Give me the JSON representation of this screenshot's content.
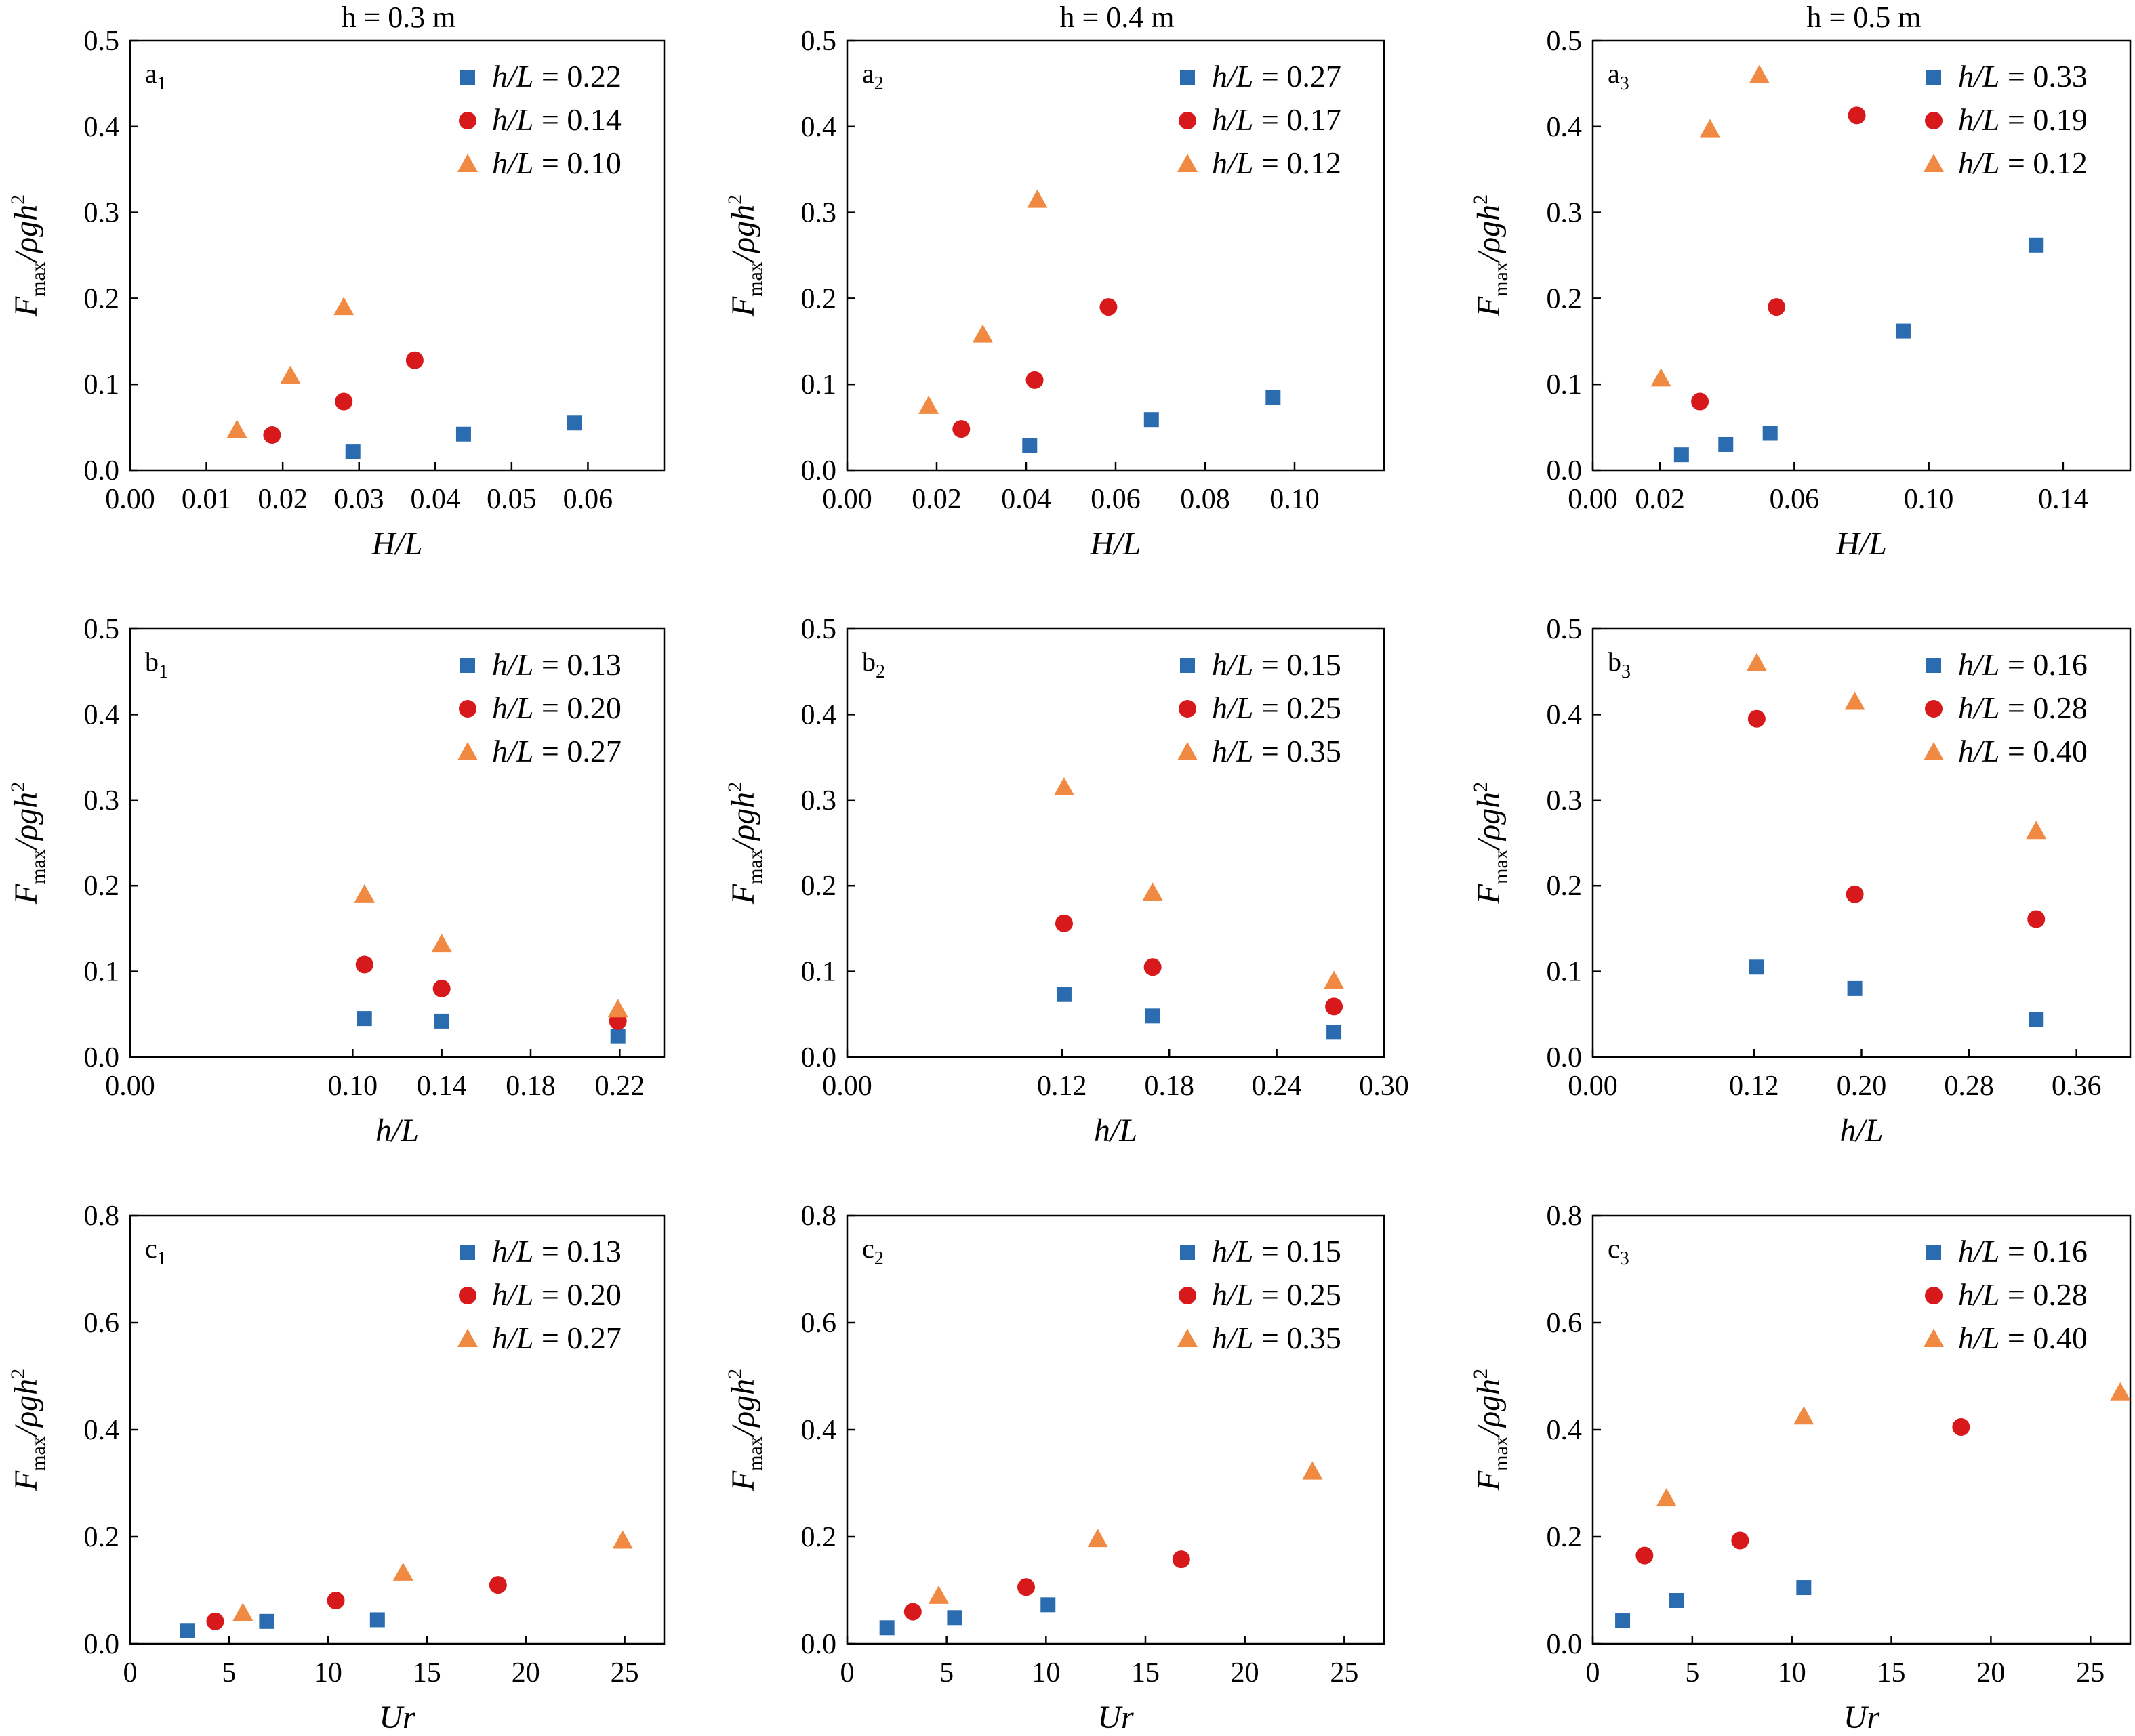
{
  "column_titles": [
    "h = 0.3 m",
    "h = 0.4 m",
    "h = 0.5 m"
  ],
  "colors": {
    "blue": "#2b6cb0",
    "red": "#d7191c",
    "orange": "#f08a42"
  },
  "chart_data": [
    {
      "id": "a1",
      "type": "scatter",
      "panel_label": "a1",
      "xlabel": "H/L",
      "ylabel": "Fmax/ρgh2",
      "xlim": [
        0,
        0.07
      ],
      "ylim": [
        0,
        0.5
      ],
      "xticks": [
        "0.00",
        "0.01",
        "0.02",
        "0.03",
        "0.04",
        "0.05",
        "0.06"
      ],
      "xtick_values": [
        0,
        0.01,
        0.02,
        0.03,
        0.04,
        0.05,
        0.06
      ],
      "yticks": [
        "0.0",
        "0.1",
        "0.2",
        "0.3",
        "0.4",
        "0.5"
      ],
      "ytick_values": [
        0,
        0.1,
        0.2,
        0.3,
        0.4,
        0.5
      ],
      "series": [
        {
          "name": "h/L = 0.22",
          "marker": "square",
          "color": "#2b6cb0",
          "x": [
            0.0292,
            0.0437,
            0.0582
          ],
          "y": [
            0.022,
            0.042,
            0.055
          ]
        },
        {
          "name": "h/L = 0.14",
          "marker": "circle",
          "color": "#d7191c",
          "x": [
            0.0186,
            0.028,
            0.0373
          ],
          "y": [
            0.041,
            0.08,
            0.128
          ]
        },
        {
          "name": "h/L = 0.10",
          "marker": "triangle",
          "color": "#f08a42",
          "x": [
            0.014,
            0.021,
            0.028
          ],
          "y": [
            0.047,
            0.11,
            0.19
          ]
        }
      ]
    },
    {
      "id": "a2",
      "type": "scatter",
      "panel_label": "a2",
      "xlabel": "H/L",
      "ylabel": "Fmax/ρgh2",
      "xlim": [
        0,
        0.12
      ],
      "ylim": [
        0,
        0.5
      ],
      "xticks": [
        "0.00",
        "0.02",
        "0.04",
        "0.06",
        "0.08",
        "0.10"
      ],
      "xtick_values": [
        0,
        0.02,
        0.04,
        0.06,
        0.08,
        0.1
      ],
      "yticks": [
        "0.0",
        "0.1",
        "0.2",
        "0.3",
        "0.4",
        "0.5"
      ],
      "ytick_values": [
        0,
        0.1,
        0.2,
        0.3,
        0.4,
        0.5
      ],
      "series": [
        {
          "name": "h/L = 0.27",
          "marker": "square",
          "color": "#2b6cb0",
          "x": [
            0.0408,
            0.068,
            0.0952
          ],
          "y": [
            0.029,
            0.059,
            0.085
          ]
        },
        {
          "name": "h/L = 0.17",
          "marker": "circle",
          "color": "#d7191c",
          "x": [
            0.0255,
            0.0419,
            0.0584
          ],
          "y": [
            0.048,
            0.105,
            0.19
          ]
        },
        {
          "name": "h/L = 0.12",
          "marker": "triangle",
          "color": "#f08a42",
          "x": [
            0.0182,
            0.0303,
            0.0425
          ],
          "y": [
            0.075,
            0.158,
            0.315
          ]
        }
      ]
    },
    {
      "id": "a3",
      "type": "scatter",
      "panel_label": "a3",
      "xlabel": "H/L",
      "ylabel": "Fmax/ρgh2",
      "xlim": [
        0,
        0.16
      ],
      "ylim": [
        0,
        0.5
      ],
      "xticks": [
        "0.00",
        "0.02",
        "0.06",
        "0.10",
        "0.14"
      ],
      "xtick_values": [
        0,
        0.02,
        0.06,
        0.1,
        0.14
      ],
      "yticks": [
        "0.0",
        "0.1",
        "0.2",
        "0.3",
        "0.4",
        "0.5"
      ],
      "ytick_values": [
        0,
        0.1,
        0.2,
        0.3,
        0.4,
        0.5
      ],
      "series": [
        {
          "name": "h/L = 0.33",
          "marker": "square",
          "color": "#2b6cb0",
          "x": [
            0.0264,
            0.0396,
            0.0528,
            0.0924,
            0.132
          ],
          "y": [
            0.018,
            0.03,
            0.043,
            0.162,
            0.262
          ]
        },
        {
          "name": "h/L = 0.19",
          "marker": "circle",
          "color": "#d7191c",
          "x": [
            0.0319,
            0.0547,
            0.0786
          ],
          "y": [
            0.08,
            0.19,
            0.413
          ]
        },
        {
          "name": "h/L = 0.12",
          "marker": "triangle",
          "color": "#f08a42",
          "x": [
            0.0203,
            0.0349,
            0.0496
          ],
          "y": [
            0.107,
            0.397,
            0.46
          ]
        }
      ]
    },
    {
      "id": "b1",
      "type": "scatter",
      "panel_label": "b1",
      "xlabel": "h/L",
      "ylabel": "Fmax/ρgh2",
      "xlim": [
        0,
        0.24
      ],
      "ylim": [
        0,
        0.5
      ],
      "xticks": [
        "0.00",
        "0.10",
        "0.14",
        "0.18",
        "0.22"
      ],
      "xtick_values": [
        0,
        0.1,
        0.14,
        0.18,
        0.22
      ],
      "yticks": [
        "0.0",
        "0.1",
        "0.2",
        "0.3",
        "0.4",
        "0.5"
      ],
      "ytick_values": [
        0,
        0.1,
        0.2,
        0.3,
        0.4,
        0.5
      ],
      "series": [
        {
          "name": "h/L = 0.13",
          "marker": "square",
          "color": "#2b6cb0",
          "x": [
            0.1053,
            0.14,
            0.2192
          ],
          "y": [
            0.045,
            0.042,
            0.024
          ]
        },
        {
          "name": "h/L = 0.20",
          "marker": "circle",
          "color": "#d7191c",
          "x": [
            0.1053,
            0.14,
            0.2192
          ],
          "y": [
            0.108,
            0.08,
            0.042
          ]
        },
        {
          "name": "h/L = 0.27",
          "marker": "triangle",
          "color": "#f08a42",
          "x": [
            0.1053,
            0.14,
            0.2192
          ],
          "y": [
            0.19,
            0.132,
            0.056
          ]
        }
      ]
    },
    {
      "id": "b2",
      "type": "scatter",
      "panel_label": "b2",
      "xlabel": "h/L",
      "ylabel": "Fmax/ρgh2",
      "xlim": [
        0,
        0.3
      ],
      "ylim": [
        0,
        0.5
      ],
      "xticks": [
        "0.00",
        "0.12",
        "0.18",
        "0.24",
        "0.30"
      ],
      "xtick_values": [
        0,
        0.12,
        0.18,
        0.24,
        0.3
      ],
      "yticks": [
        "0.0",
        "0.1",
        "0.2",
        "0.3",
        "0.4",
        "0.5"
      ],
      "ytick_values": [
        0,
        0.1,
        0.2,
        0.3,
        0.4,
        0.5
      ],
      "series": [
        {
          "name": "h/L = 0.15",
          "marker": "square",
          "color": "#2b6cb0",
          "x": [
            0.1212,
            0.1707,
            0.272
          ],
          "y": [
            0.073,
            0.048,
            0.029
          ]
        },
        {
          "name": "h/L = 0.25",
          "marker": "circle",
          "color": "#d7191c",
          "x": [
            0.1212,
            0.1707,
            0.272
          ],
          "y": [
            0.156,
            0.105,
            0.059
          ]
        },
        {
          "name": "h/L = 0.35",
          "marker": "triangle",
          "color": "#f08a42",
          "x": [
            0.1212,
            0.1707,
            0.272
          ],
          "y": [
            0.315,
            0.192,
            0.089
          ]
        }
      ]
    },
    {
      "id": "b3",
      "type": "scatter",
      "panel_label": "b3",
      "xlabel": "h/L",
      "ylabel": "Fmax/ρgh2",
      "xlim": [
        0,
        0.4
      ],
      "ylim": [
        0,
        0.5
      ],
      "xticks": [
        "0.00",
        "0.12",
        "0.20",
        "0.28",
        "0.36"
      ],
      "xtick_values": [
        0,
        0.12,
        0.2,
        0.28,
        0.36
      ],
      "yticks": [
        "0.0",
        "0.1",
        "0.2",
        "0.3",
        "0.4",
        "0.5"
      ],
      "ytick_values": [
        0,
        0.1,
        0.2,
        0.3,
        0.4,
        0.5
      ],
      "series": [
        {
          "name": "h/L = 0.16",
          "marker": "square",
          "color": "#2b6cb0",
          "x": [
            0.122,
            0.195,
            0.33
          ],
          "y": [
            0.105,
            0.08,
            0.044
          ]
        },
        {
          "name": "h/L = 0.28",
          "marker": "circle",
          "color": "#d7191c",
          "x": [
            0.122,
            0.195,
            0.33
          ],
          "y": [
            0.395,
            0.19,
            0.161
          ]
        },
        {
          "name": "h/L = 0.40",
          "marker": "triangle",
          "color": "#f08a42",
          "x": [
            0.122,
            0.195,
            0.33
          ],
          "y": [
            0.46,
            0.415,
            0.264
          ]
        }
      ]
    },
    {
      "id": "c1",
      "type": "scatter",
      "panel_label": "c1",
      "xlabel": "Ur",
      "ylabel": "Fmax/ρgh2",
      "xlim": [
        0,
        27
      ],
      "ylim": [
        0,
        0.8
      ],
      "xticks": [
        "0",
        "5",
        "10",
        "15",
        "20",
        "25"
      ],
      "xtick_values": [
        0,
        5,
        10,
        15,
        20,
        25
      ],
      "yticks": [
        "0.0",
        "0.2",
        "0.4",
        "0.6",
        "0.8"
      ],
      "ytick_values": [
        0,
        0.2,
        0.4,
        0.6,
        0.8
      ],
      "series": [
        {
          "name": "h/L = 0.13",
          "marker": "square",
          "color": "#2b6cb0",
          "x": [
            2.9,
            6.9,
            12.5
          ],
          "y": [
            0.025,
            0.042,
            0.045
          ]
        },
        {
          "name": "h/L = 0.20",
          "marker": "circle",
          "color": "#d7191c",
          "x": [
            4.3,
            10.4,
            18.6
          ],
          "y": [
            0.042,
            0.081,
            0.11
          ]
        },
        {
          "name": "h/L = 0.27",
          "marker": "triangle",
          "color": "#f08a42",
          "x": [
            5.7,
            13.8,
            24.9
          ],
          "y": [
            0.058,
            0.133,
            0.193
          ]
        }
      ]
    },
    {
      "id": "c2",
      "type": "scatter",
      "panel_label": "c2",
      "xlabel": "Ur",
      "ylabel": "Fmax/ρgh2",
      "xlim": [
        0,
        27
      ],
      "ylim": [
        0,
        0.8
      ],
      "xticks": [
        "0",
        "5",
        "10",
        "15",
        "20",
        "25"
      ],
      "xtick_values": [
        0,
        5,
        10,
        15,
        20,
        25
      ],
      "yticks": [
        "0.0",
        "0.2",
        "0.4",
        "0.6",
        "0.8"
      ],
      "ytick_values": [
        0,
        0.2,
        0.4,
        0.6,
        0.8
      ],
      "series": [
        {
          "name": "h/L = 0.15",
          "marker": "square",
          "color": "#2b6cb0",
          "x": [
            2.0,
            5.4,
            10.1
          ],
          "y": [
            0.03,
            0.049,
            0.073
          ]
        },
        {
          "name": "h/L = 0.25",
          "marker": "circle",
          "color": "#d7191c",
          "x": [
            3.3,
            9.0,
            16.8
          ],
          "y": [
            0.06,
            0.106,
            0.158
          ]
        },
        {
          "name": "h/L = 0.35",
          "marker": "triangle",
          "color": "#f08a42",
          "x": [
            4.6,
            12.6,
            23.4
          ],
          "y": [
            0.09,
            0.196,
            0.322
          ]
        }
      ]
    },
    {
      "id": "c3",
      "type": "scatter",
      "panel_label": "c3",
      "xlabel": "Ur",
      "ylabel": "Fmax/ρgh2",
      "xlim": [
        0,
        27
      ],
      "ylim": [
        0,
        0.8
      ],
      "xticks": [
        "0",
        "5",
        "10",
        "15",
        "20",
        "25"
      ],
      "xtick_values": [
        0,
        5,
        10,
        15,
        20,
        25
      ],
      "yticks": [
        "0.0",
        "0.2",
        "0.4",
        "0.6",
        "0.8"
      ],
      "ytick_values": [
        0,
        0.2,
        0.4,
        0.6,
        0.8
      ],
      "series": [
        {
          "name": "h/L = 0.16",
          "marker": "square",
          "color": "#2b6cb0",
          "x": [
            1.5,
            4.2,
            10.6
          ],
          "y": [
            0.043,
            0.081,
            0.105
          ]
        },
        {
          "name": "h/L = 0.28",
          "marker": "circle",
          "color": "#d7191c",
          "x": [
            2.6,
            7.4,
            18.5
          ],
          "y": [
            0.165,
            0.193,
            0.405
          ]
        },
        {
          "name": "h/L = 0.40",
          "marker": "triangle",
          "color": "#f08a42",
          "x": [
            3.7,
            10.6,
            26.5
          ],
          "y": [
            0.272,
            0.425,
            0.47
          ]
        }
      ]
    }
  ]
}
